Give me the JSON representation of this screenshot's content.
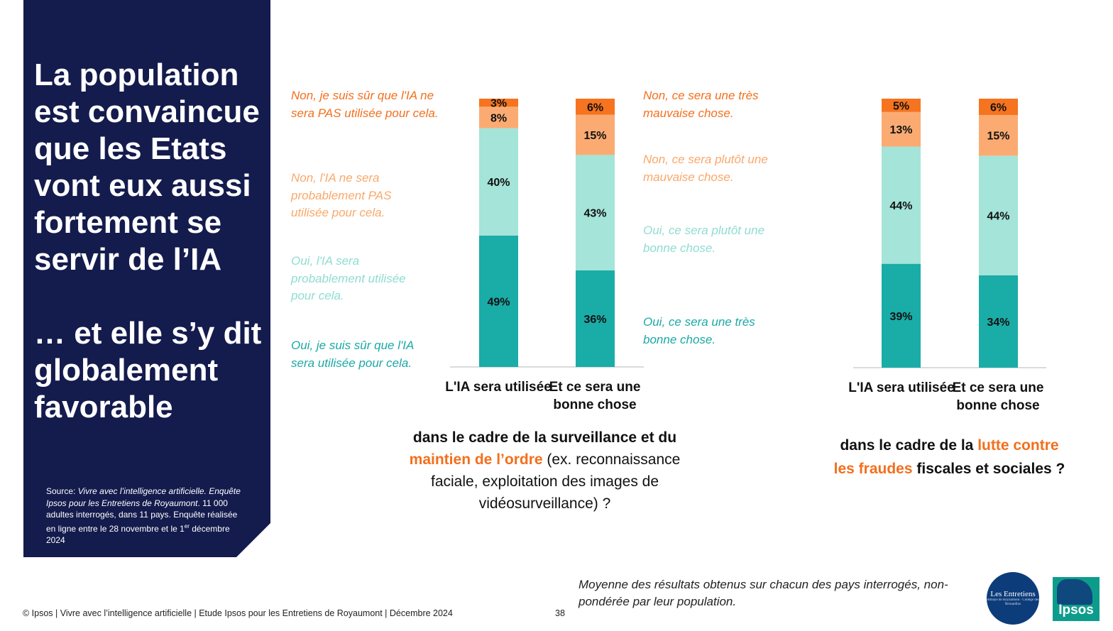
{
  "headline": {
    "main": "La population est convaincue que les Etats vont eux aussi fortement se servir de l’IA",
    "sub": "… et elle s’y dit globalement favorable"
  },
  "source": {
    "prefix": "Source: ",
    "title": "Vivre avec l’intelligence artificielle. Enquête Ipsos pour les Entretiens de Royaumont",
    "details": ". 11 000 adultes interrogés, dans 11 pays. Enquête réalisée en ligne entre le 28 novembre et le 1",
    "sup": "er",
    "end": " décembre 2024"
  },
  "legend_left": [
    {
      "text": "Non, je suis sûr que l'IA ne sera PAS utilisée pour cela.",
      "color": "#f36f1c"
    },
    {
      "text": "Non, l'IA ne sera probablement PAS utilisée pour cela.",
      "color": "#f9a86a"
    },
    {
      "text": "Oui, l'IA sera probablement utilisée pour cela.",
      "color": "#8fdcd1"
    },
    {
      "text": "Oui, je suis sûr que l'IA sera utilisée pour cela.",
      "color": "#1aa9a5"
    }
  ],
  "legend_right": [
    {
      "text": "Non, ce sera une très mauvaise chose.",
      "color": "#f36f1c"
    },
    {
      "text": "Non, ce sera plutôt une mauvaise chose.",
      "color": "#f9a86a"
    },
    {
      "text": "Oui, ce sera plutôt une bonne chose.",
      "color": "#8fdcd1"
    },
    {
      "text": "Oui, ce sera une très bonne chose.",
      "color": "#1aa9a5"
    }
  ],
  "colors": {
    "strong_no": "#f6731f",
    "weak_no": "#fbab72",
    "weak_yes": "#a4e4d9",
    "strong_yes": "#1aaca7",
    "navy": "#141b4d"
  },
  "chart_data": [
    {
      "type": "bar",
      "stacked": true,
      "categories": [
        "L'IA sera utilisée",
        "Et ce sera une bonne chose"
      ],
      "series": [
        {
          "name": "Oui, très / sûr",
          "values": [
            49,
            36
          ]
        },
        {
          "name": "Oui, plutôt / probablement",
          "values": [
            40,
            43
          ]
        },
        {
          "name": "Non, plutôt / probablement",
          "values": [
            8,
            15
          ]
        },
        {
          "name": "Non, très / sûr",
          "values": [
            3,
            6
          ]
        }
      ],
      "ylim": [
        0,
        100
      ]
    },
    {
      "type": "bar",
      "stacked": true,
      "categories": [
        "L'IA sera utilisée",
        "Et ce sera une bonne chose"
      ],
      "series": [
        {
          "name": "Oui, très / sûr",
          "values": [
            39,
            34
          ]
        },
        {
          "name": "Oui, plutôt / probablement",
          "values": [
            44,
            44
          ]
        },
        {
          "name": "Non, plutôt / probablement",
          "values": [
            13,
            15
          ]
        },
        {
          "name": "Non, très / sûr",
          "values": [
            5,
            6
          ]
        }
      ],
      "ylim": [
        0,
        100
      ]
    }
  ],
  "categories_left": [
    "L'IA sera utilisée",
    "Et ce sera une bonne chose"
  ],
  "categories_right": [
    "L'IA sera utilisée",
    "Et ce sera une bonne chose"
  ],
  "question_left": {
    "part1": "dans le cadre de la surveillance et du ",
    "highlight": "maintien de l’ordre",
    "part2": " (ex. reconnaissance faciale, exploitation des images de vidéosurveillance) ?"
  },
  "question_right": {
    "part1": "dans le cadre de la ",
    "highlight": "lutte contre les fraudes",
    "part2": " fiscales et sociales ?"
  },
  "footer_note": "Moyenne des résultats obtenus sur chacun des pays interrogés, non-pondérée par leur population.",
  "copyright": "© Ipsos | Vivre avec l’intelligence artificielle | Etude Ipsos pour les Entretiens de Royaumont | Décembre 2024",
  "page_number": "38",
  "logo_entretiens": {
    "title": "Les Entretiens",
    "subtitle": "Abbaye de Royaumont · Collège des Bernardins"
  },
  "logo_ipsos": "Ipsos"
}
